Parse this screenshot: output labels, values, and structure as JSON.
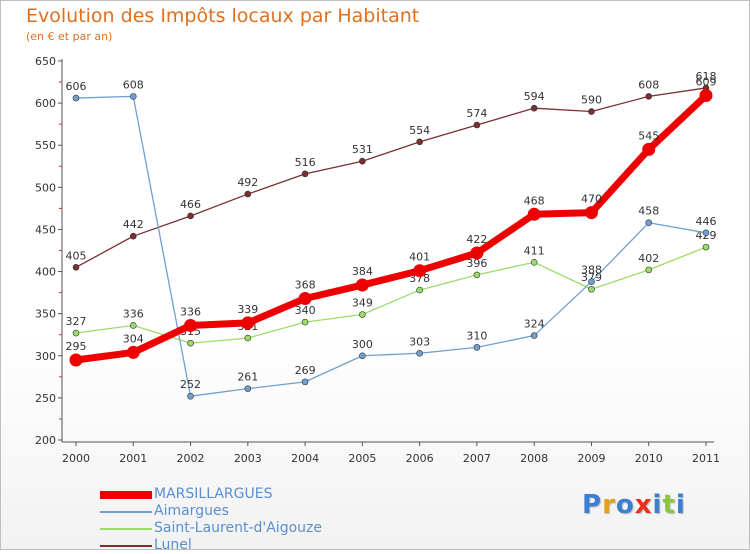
{
  "chart_data": {
    "type": "line",
    "title": "Evolution des Impôts locaux par Habitant",
    "subtitle": "(en € et par an)",
    "x": [
      "2000",
      "2001",
      "2002",
      "2003",
      "2004",
      "2005",
      "2006",
      "2007",
      "2008",
      "2009",
      "2010",
      "2011"
    ],
    "yticks": [
      200,
      250,
      300,
      350,
      400,
      450,
      500,
      550,
      600,
      650
    ],
    "ylim": [
      200,
      650
    ],
    "grid": false,
    "legend_position": "bottom-left",
    "series": [
      {
        "name": "MARSILLARGUES",
        "color": "#ee0000",
        "values": [
          295,
          304,
          336,
          339,
          368,
          384,
          401,
          422,
          468,
          470,
          545,
          609
        ]
      },
      {
        "name": "Aimargues",
        "color": "#6fa0d0",
        "values": [
          606,
          608,
          252,
          261,
          269,
          300,
          303,
          310,
          324,
          388,
          458,
          446
        ]
      },
      {
        "name": "Saint-Laurent-d'Aigouze",
        "color": "#99dd66",
        "values": [
          327,
          336,
          315,
          321,
          340,
          349,
          378,
          396,
          411,
          379,
          402,
          429
        ]
      },
      {
        "name": "Lunel",
        "color": "#7a2f2f",
        "values": [
          405,
          442,
          466,
          492,
          516,
          531,
          554,
          574,
          594,
          590,
          608,
          618
        ]
      }
    ]
  },
  "logo": {
    "letters": [
      "P",
      "r",
      "o",
      "x",
      "i",
      "t",
      "i"
    ],
    "colors": [
      "#3a7fd0",
      "#e8a020",
      "#3a7fd0",
      "#e83020",
      "#3a7fd0",
      "#8cc63f",
      "#3a7fd0"
    ]
  }
}
